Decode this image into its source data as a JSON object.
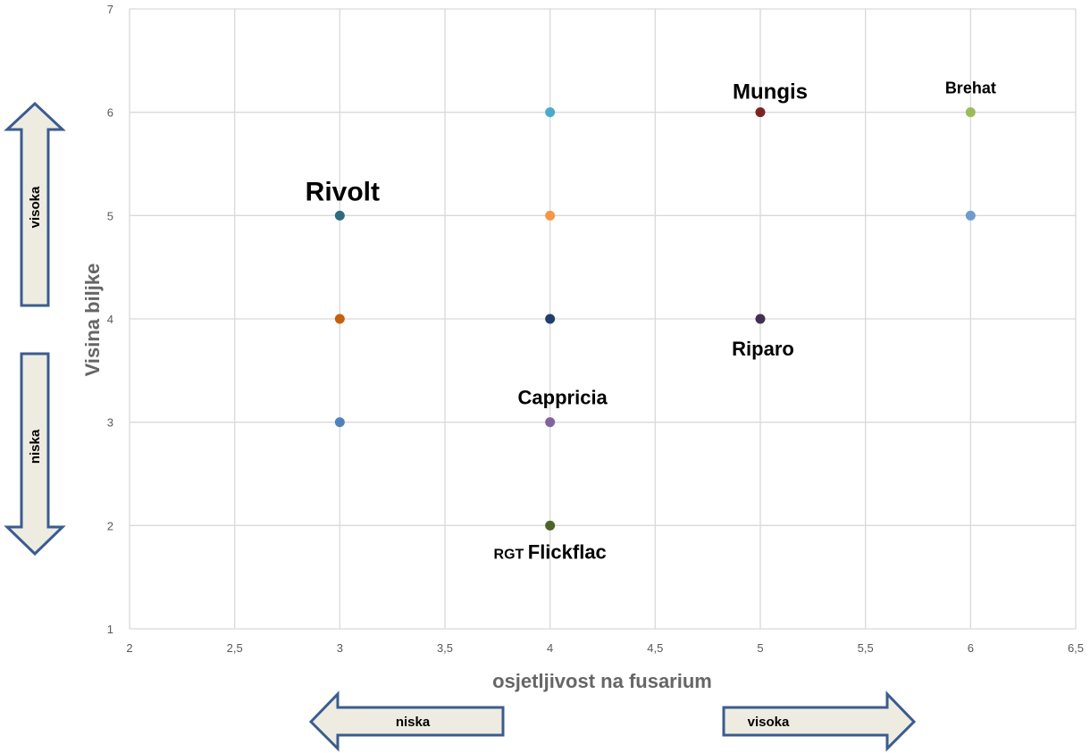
{
  "chart_data": {
    "type": "scatter",
    "xlabel": "osjetljivost na fusarium",
    "ylabel": "Visina biljke",
    "xlim": [
      2,
      6.5
    ],
    "ylim": [
      1,
      7
    ],
    "x_ticks": [
      "2",
      "2,5",
      "3",
      "3,5",
      "4",
      "4,5",
      "5",
      "5,5",
      "6",
      "6,5"
    ],
    "y_ticks": [
      "1",
      "2",
      "3",
      "4",
      "5",
      "6",
      "7"
    ],
    "grid": true,
    "points": [
      {
        "x": 3,
        "y": 5,
        "color": "#2e6b7e",
        "label": "Rivolt"
      },
      {
        "x": 3,
        "y": 4,
        "color": "#c5600f",
        "label": ""
      },
      {
        "x": 3,
        "y": 3,
        "color": "#4f81bd",
        "label": ""
      },
      {
        "x": 4,
        "y": 6,
        "color": "#4bacc6",
        "label": ""
      },
      {
        "x": 4,
        "y": 5,
        "color": "#f79646",
        "label": ""
      },
      {
        "x": 4,
        "y": 4,
        "color": "#1f3f6b",
        "label": ""
      },
      {
        "x": 4,
        "y": 3,
        "color": "#8064a2",
        "label": "Cappricia"
      },
      {
        "x": 4,
        "y": 2,
        "color": "#4f6228",
        "label": "RGT Flickflac"
      },
      {
        "x": 5,
        "y": 6,
        "color": "#7b2424",
        "label": "Mungis"
      },
      {
        "x": 5,
        "y": 4,
        "color": "#403152",
        "label": "Riparo"
      },
      {
        "x": 6,
        "y": 6,
        "color": "#9bbb59",
        "label": "Brehat"
      },
      {
        "x": 6,
        "y": 5,
        "color": "#6e9bd0",
        "label": ""
      }
    ],
    "arrows": {
      "y_high": "visoka",
      "y_low": "niska",
      "x_low": "niska",
      "x_high": "visoka"
    }
  }
}
